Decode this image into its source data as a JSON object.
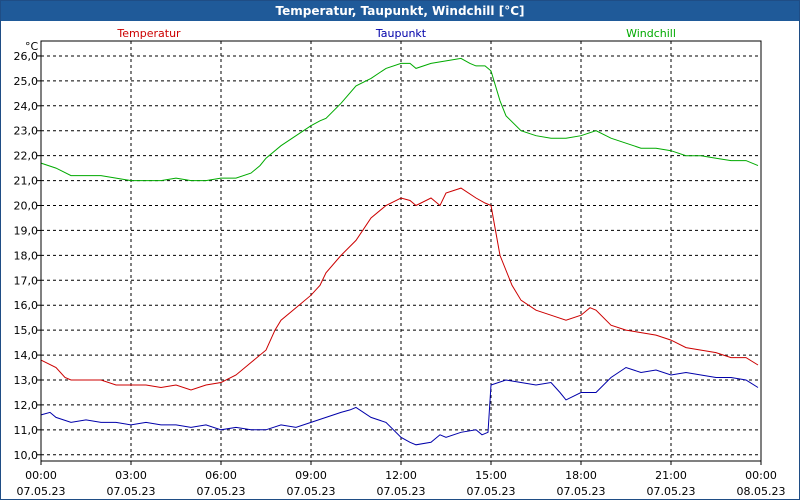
{
  "window_title": "Temperatur, Taupunkt, Windchill [°C]",
  "colors": {
    "titlebar_bg": "#1f5a99",
    "temperatur": "#cc0000",
    "taupunkt": "#0000aa",
    "windchill": "#00aa00"
  },
  "chart_data": {
    "type": "line",
    "title": "Temperatur, Taupunkt, Windchill [°C]",
    "ylabel": "°C",
    "ylim": [
      9.75,
      26.6
    ],
    "y_ticks": [
      "26,0",
      "25,0",
      "24,0",
      "23,0",
      "22,0",
      "21,0",
      "20,0",
      "19,0",
      "18,0",
      "17,0",
      "16,0",
      "15,0",
      "14,0",
      "13,0",
      "12,0",
      "11,0",
      "10,0"
    ],
    "xlim": [
      0,
      24
    ],
    "x_ticks": [
      {
        "time": "00:00",
        "date": "07.05.23"
      },
      {
        "time": "03:00",
        "date": "07.05.23"
      },
      {
        "time": "06:00",
        "date": "07.05.23"
      },
      {
        "time": "09:00",
        "date": "07.05.23"
      },
      {
        "time": "12:00",
        "date": "07.05.23"
      },
      {
        "time": "15:00",
        "date": "07.05.23"
      },
      {
        "time": "18:00",
        "date": "07.05.23"
      },
      {
        "time": "21:00",
        "date": "07.05.23"
      },
      {
        "time": "00:00",
        "date": "08.05.23"
      }
    ],
    "grid": true,
    "series": [
      {
        "name": "Temperatur",
        "color": "#cc0000",
        "x": [
          0,
          0.5,
          0.8,
          1,
          1.5,
          2,
          2.5,
          3,
          3.5,
          4,
          4.5,
          5,
          5.5,
          6,
          6.5,
          7,
          7.5,
          7.8,
          8,
          8.5,
          9,
          9.3,
          9.5,
          10,
          10.5,
          11,
          11.5,
          12,
          12.3,
          12.5,
          13,
          13.3,
          13.5,
          14,
          14.5,
          14.8,
          15,
          15.3,
          15.7,
          16,
          16.5,
          17,
          17.5,
          18,
          18.3,
          18.5,
          19,
          19.5,
          20,
          20.5,
          21,
          21.5,
          22,
          22.5,
          23,
          23.5,
          23.9
        ],
        "values": [
          13.8,
          13.5,
          13.1,
          13.0,
          13.0,
          13.0,
          12.8,
          12.8,
          12.8,
          12.7,
          12.8,
          12.6,
          12.8,
          12.9,
          13.2,
          13.7,
          14.2,
          15.0,
          15.4,
          15.9,
          16.4,
          16.8,
          17.3,
          18.0,
          18.6,
          19.5,
          20.0,
          20.3,
          20.2,
          20.0,
          20.3,
          20.0,
          20.5,
          20.7,
          20.3,
          20.1,
          20.0,
          18.0,
          16.8,
          16.2,
          15.8,
          15.6,
          15.4,
          15.6,
          15.9,
          15.8,
          15.2,
          15.0,
          14.9,
          14.8,
          14.6,
          14.3,
          14.2,
          14.1,
          13.9,
          13.9,
          13.6
        ]
      },
      {
        "name": "Taupunkt",
        "color": "#0000aa",
        "x": [
          0,
          0.3,
          0.5,
          1,
          1.5,
          2,
          2.5,
          3,
          3.5,
          4,
          4.5,
          5,
          5.5,
          6,
          6.5,
          7,
          7.5,
          8,
          8.5,
          9,
          9.5,
          10,
          10.3,
          10.5,
          11,
          11.5,
          12,
          12.3,
          12.5,
          13,
          13.3,
          13.5,
          14,
          14.5,
          14.7,
          14.9,
          15.0,
          15.5,
          16,
          16.5,
          17,
          17.3,
          17.5,
          18,
          18.5,
          19,
          19.5,
          20,
          20.5,
          21,
          21.5,
          22,
          22.5,
          23,
          23.5,
          23.9
        ],
        "values": [
          11.6,
          11.7,
          11.5,
          11.3,
          11.4,
          11.3,
          11.3,
          11.2,
          11.3,
          11.2,
          11.2,
          11.1,
          11.2,
          11.0,
          11.1,
          11.0,
          11.0,
          11.2,
          11.1,
          11.3,
          11.5,
          11.7,
          11.8,
          11.9,
          11.5,
          11.3,
          10.7,
          10.5,
          10.4,
          10.5,
          10.8,
          10.7,
          10.9,
          11.0,
          10.8,
          10.9,
          12.8,
          13.0,
          12.9,
          12.8,
          12.9,
          12.5,
          12.2,
          12.5,
          12.5,
          13.1,
          13.5,
          13.3,
          13.4,
          13.2,
          13.3,
          13.2,
          13.1,
          13.1,
          13.0,
          12.7
        ]
      },
      {
        "name": "Windchill",
        "color": "#00aa00",
        "x": [
          0,
          0.5,
          1,
          1.5,
          2,
          2.5,
          3,
          3.5,
          4,
          4.5,
          5,
          5.5,
          6,
          6.5,
          7,
          7.3,
          7.5,
          8,
          8.5,
          9,
          9.3,
          9.5,
          10,
          10.5,
          11,
          11.5,
          12,
          12.3,
          12.5,
          13,
          13.5,
          14,
          14.3,
          14.5,
          14.8,
          15.0,
          15.3,
          15.5,
          16,
          16.5,
          17,
          17.5,
          18,
          18.5,
          19,
          19.5,
          20,
          20.5,
          21,
          21.5,
          22,
          22.5,
          23,
          23.5,
          23.9
        ],
        "values": [
          21.7,
          21.5,
          21.2,
          21.2,
          21.2,
          21.1,
          21.0,
          21.0,
          21.0,
          21.1,
          21.0,
          21.0,
          21.1,
          21.1,
          21.3,
          21.6,
          21.9,
          22.4,
          22.8,
          23.2,
          23.4,
          23.5,
          24.1,
          24.8,
          25.1,
          25.5,
          25.7,
          25.7,
          25.5,
          25.7,
          25.8,
          25.9,
          25.7,
          25.6,
          25.6,
          25.4,
          24.2,
          23.6,
          23.0,
          22.8,
          22.7,
          22.7,
          22.8,
          23.0,
          22.7,
          22.5,
          22.3,
          22.3,
          22.2,
          22.0,
          22.0,
          21.9,
          21.8,
          21.8,
          21.6
        ]
      }
    ]
  }
}
